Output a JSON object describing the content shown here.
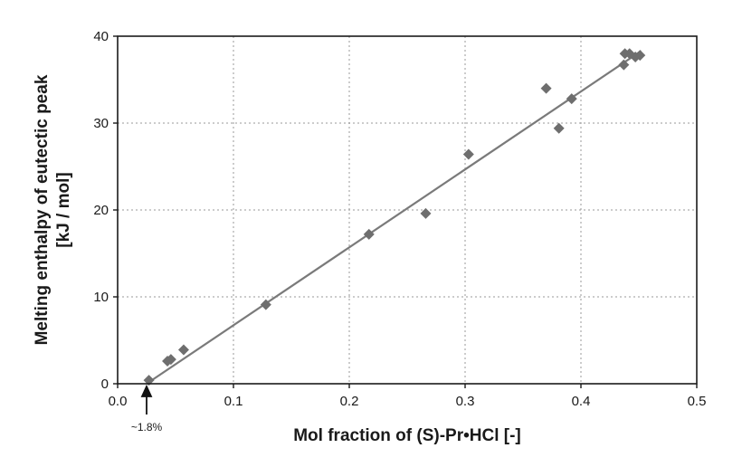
{
  "chart_data": {
    "type": "scatter",
    "xlabel": "Mol fraction of (S)-Pr•HCl [-]",
    "ylabel_lines": [
      "Melting enthalpy of eutectic peak",
      "[kJ / mol]"
    ],
    "xlim": [
      0.0,
      0.5
    ],
    "ylim": [
      0,
      40
    ],
    "x_ticks": [
      0.0,
      0.1,
      0.2,
      0.3,
      0.4,
      0.5
    ],
    "x_tick_labels": [
      "0.0",
      "0.1",
      "0.2",
      "0.3",
      "0.4",
      "0.5"
    ],
    "y_ticks": [
      0,
      10,
      20,
      30,
      40
    ],
    "y_tick_labels": [
      "0",
      "10",
      "20",
      "30",
      "40"
    ],
    "grid": true,
    "series": [
      {
        "marker": "diamond",
        "color": "#6e6e6e",
        "points": [
          {
            "x": 0.027,
            "y": 0.4
          },
          {
            "x": 0.043,
            "y": 2.6
          },
          {
            "x": 0.046,
            "y": 2.8
          },
          {
            "x": 0.057,
            "y": 3.9
          },
          {
            "x": 0.128,
            "y": 9.1
          },
          {
            "x": 0.217,
            "y": 17.2
          },
          {
            "x": 0.266,
            "y": 19.6
          },
          {
            "x": 0.303,
            "y": 26.4
          },
          {
            "x": 0.37,
            "y": 34.0
          },
          {
            "x": 0.381,
            "y": 29.4
          },
          {
            "x": 0.392,
            "y": 32.8
          },
          {
            "x": 0.437,
            "y": 36.7
          },
          {
            "x": 0.438,
            "y": 38.0
          },
          {
            "x": 0.442,
            "y": 38.0
          },
          {
            "x": 0.447,
            "y": 37.6
          },
          {
            "x": 0.451,
            "y": 37.8
          }
        ]
      }
    ],
    "fit_line": {
      "color": "#7a7a7a",
      "x": [
        0.025,
        0.452
      ],
      "y": [
        0.0,
        38.3
      ]
    },
    "annotations": [
      {
        "text": "~1.8%",
        "x": 0.025,
        "arrow": "up"
      }
    ]
  }
}
